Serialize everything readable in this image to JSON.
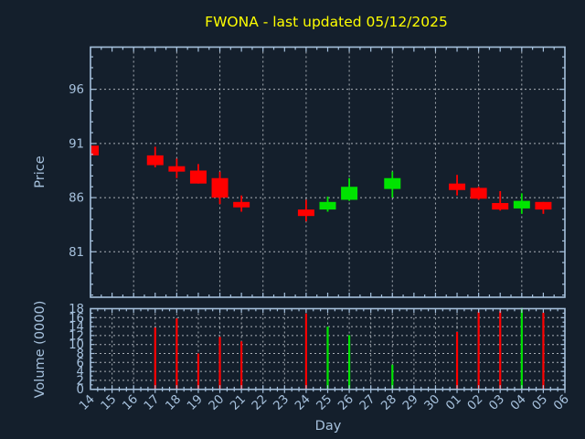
{
  "title": {
    "text": "FWONA - last updated 05/12/2025",
    "color": "#ffff00"
  },
  "colors": {
    "background": "#141f2c",
    "axis": "#a6c1dd",
    "grid": "#c2c8ce",
    "up": "#00e400",
    "down": "#ff0000",
    "title": "#ffff00"
  },
  "chart_data": {
    "type": "candlestick+volume",
    "title": "FWONA - last updated 05/12/2025",
    "xlabel": "Day",
    "x_categories": [
      "14",
      "15",
      "16",
      "17",
      "18",
      "19",
      "20",
      "21",
      "22",
      "23",
      "24",
      "25",
      "26",
      "27",
      "28",
      "29",
      "30",
      "01",
      "02",
      "03",
      "04",
      "05",
      "06"
    ],
    "price_axis": {
      "label": "Price",
      "ticks": [
        81,
        86,
        91,
        96
      ],
      "range": [
        76.8,
        99.9
      ]
    },
    "volume_axis": {
      "label": "Volume (0000)",
      "ticks": [
        0,
        2,
        4,
        6,
        8,
        10,
        12,
        14,
        16,
        18
      ],
      "range": [
        0,
        18
      ]
    },
    "grid": true,
    "candles": [
      {
        "day": "14",
        "open": 90.8,
        "high": 90.8,
        "low": 89.9,
        "close": 89.9,
        "dir": "down"
      },
      {
        "day": "17",
        "open": 89.9,
        "high": 90.7,
        "low": 88.8,
        "close": 89.0,
        "dir": "down"
      },
      {
        "day": "18",
        "open": 88.9,
        "high": 89.6,
        "low": 87.8,
        "close": 88.4,
        "dir": "down"
      },
      {
        "day": "19",
        "open": 88.5,
        "high": 89.1,
        "low": 87.3,
        "close": 87.3,
        "dir": "down"
      },
      {
        "day": "20",
        "open": 87.8,
        "high": 88.4,
        "low": 85.4,
        "close": 86.0,
        "dir": "down"
      },
      {
        "day": "21",
        "open": 85.6,
        "high": 86.2,
        "low": 84.7,
        "close": 85.1,
        "dir": "down"
      },
      {
        "day": "24",
        "open": 84.9,
        "high": 85.8,
        "low": 83.8,
        "close": 84.3,
        "dir": "down"
      },
      {
        "day": "25",
        "open": 84.9,
        "high": 86.1,
        "low": 84.7,
        "close": 85.6,
        "dir": "up"
      },
      {
        "day": "26",
        "open": 85.8,
        "high": 87.8,
        "low": 85.7,
        "close": 87.0,
        "dir": "up"
      },
      {
        "day": "28",
        "open": 86.8,
        "high": 88.4,
        "low": 86.0,
        "close": 87.8,
        "dir": "up"
      },
      {
        "day": "01",
        "open": 87.3,
        "high": 88.1,
        "low": 86.2,
        "close": 86.7,
        "dir": "down"
      },
      {
        "day": "02",
        "open": 86.9,
        "high": 87.0,
        "low": 85.8,
        "close": 85.9,
        "dir": "down"
      },
      {
        "day": "03",
        "open": 85.5,
        "high": 86.6,
        "low": 84.8,
        "close": 84.9,
        "dir": "down"
      },
      {
        "day": "04",
        "open": 85.0,
        "high": 86.4,
        "low": 84.5,
        "close": 85.7,
        "dir": "up"
      },
      {
        "day": "05",
        "open": 85.6,
        "high": 85.6,
        "low": 84.5,
        "close": 84.9,
        "dir": "down"
      }
    ],
    "volumes": [
      {
        "day": "17",
        "value": 13.8,
        "dir": "down"
      },
      {
        "day": "18",
        "value": 15.8,
        "dir": "down"
      },
      {
        "day": "19",
        "value": 8.0,
        "dir": "down"
      },
      {
        "day": "20",
        "value": 11.7,
        "dir": "down"
      },
      {
        "day": "21",
        "value": 10.7,
        "dir": "down"
      },
      {
        "day": "24",
        "value": 16.9,
        "dir": "down"
      },
      {
        "day": "25",
        "value": 14.0,
        "dir": "up"
      },
      {
        "day": "26",
        "value": 12.1,
        "dir": "up"
      },
      {
        "day": "28",
        "value": 5.5,
        "dir": "up"
      },
      {
        "day": "01",
        "value": 12.8,
        "dir": "down"
      },
      {
        "day": "02",
        "value": 17.3,
        "dir": "down"
      },
      {
        "day": "03",
        "value": 17.5,
        "dir": "down"
      },
      {
        "day": "04",
        "value": 18.2,
        "dir": "up"
      },
      {
        "day": "05",
        "value": 17.1,
        "dir": "down"
      }
    ]
  }
}
